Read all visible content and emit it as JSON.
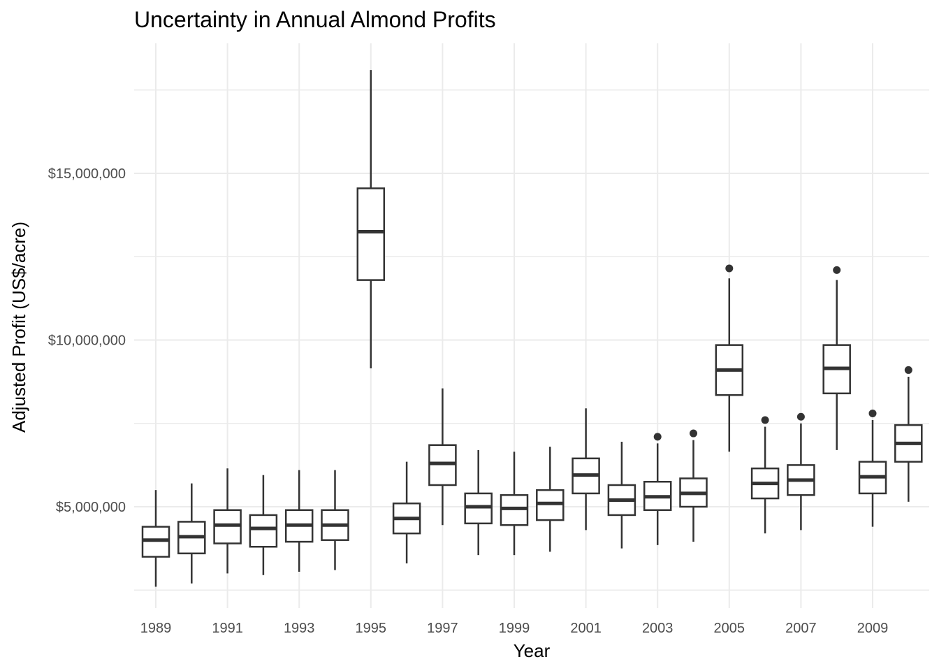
{
  "chart_data": {
    "type": "boxplot",
    "title": "Uncertainty in Annual Almond Profits",
    "xlabel": "Year",
    "ylabel": "Adjusted Profit (US$/acre)",
    "ylim": [
      2350000,
      18100000
    ],
    "y_ticks": [
      5000000,
      10000000,
      15000000
    ],
    "y_tick_labels": [
      "$5,000,000",
      "$10,000,000",
      "$15,000,000"
    ],
    "x_tick_labels": [
      "1989",
      "1991",
      "1993",
      "1995",
      "1997",
      "1999",
      "2001",
      "2003",
      "2005",
      "2007",
      "2009"
    ],
    "grid": true,
    "categories": [
      "1989",
      "1990",
      "1991",
      "1992",
      "1993",
      "1994",
      "1995",
      "1996",
      "1997",
      "1998",
      "1999",
      "2000",
      "2001",
      "2002",
      "2003",
      "2004",
      "2005",
      "2006",
      "2007",
      "2008",
      "2009",
      "2010"
    ],
    "boxes": [
      {
        "year": "1989",
        "low": 2600000,
        "q1": 3500000,
        "median": 4000000,
        "q3": 4400000,
        "high": 5500000,
        "outliers": []
      },
      {
        "year": "1990",
        "low": 2700000,
        "q1": 3600000,
        "median": 4100000,
        "q3": 4550000,
        "high": 5700000,
        "outliers": []
      },
      {
        "year": "1991",
        "low": 3000000,
        "q1": 3900000,
        "median": 4450000,
        "q3": 4900000,
        "high": 6150000,
        "outliers": []
      },
      {
        "year": "1992",
        "low": 2950000,
        "q1": 3800000,
        "median": 4350000,
        "q3": 4750000,
        "high": 5950000,
        "outliers": []
      },
      {
        "year": "1993",
        "low": 3050000,
        "q1": 3950000,
        "median": 4450000,
        "q3": 4900000,
        "high": 6100000,
        "outliers": []
      },
      {
        "year": "1994",
        "low": 3100000,
        "q1": 4000000,
        "median": 4450000,
        "q3": 4900000,
        "high": 6100000,
        "outliers": []
      },
      {
        "year": "1995",
        "low": 9150000,
        "q1": 11800000,
        "median": 13250000,
        "q3": 14550000,
        "high": 18100000,
        "outliers": []
      },
      {
        "year": "1996",
        "low": 3300000,
        "q1": 4200000,
        "median": 4650000,
        "q3": 5100000,
        "high": 6350000,
        "outliers": []
      },
      {
        "year": "1997",
        "low": 4450000,
        "q1": 5650000,
        "median": 6300000,
        "q3": 6850000,
        "high": 8550000,
        "outliers": []
      },
      {
        "year": "1998",
        "low": 3550000,
        "q1": 4500000,
        "median": 5000000,
        "q3": 5400000,
        "high": 6700000,
        "outliers": []
      },
      {
        "year": "1999",
        "low": 3550000,
        "q1": 4450000,
        "median": 4950000,
        "q3": 5350000,
        "high": 6650000,
        "outliers": []
      },
      {
        "year": "2000",
        "low": 3650000,
        "q1": 4600000,
        "median": 5100000,
        "q3": 5500000,
        "high": 6800000,
        "outliers": []
      },
      {
        "year": "2001",
        "low": 4300000,
        "q1": 5400000,
        "median": 5950000,
        "q3": 6450000,
        "high": 7950000,
        "outliers": []
      },
      {
        "year": "2002",
        "low": 3750000,
        "q1": 4750000,
        "median": 5200000,
        "q3": 5650000,
        "high": 6950000,
        "outliers": []
      },
      {
        "year": "2003",
        "low": 3850000,
        "q1": 4900000,
        "median": 5300000,
        "q3": 5750000,
        "high": 6900000,
        "outliers": [
          7100000
        ]
      },
      {
        "year": "2004",
        "low": 3950000,
        "q1": 5000000,
        "median": 5400000,
        "q3": 5850000,
        "high": 7000000,
        "outliers": [
          7200000
        ]
      },
      {
        "year": "2005",
        "low": 6650000,
        "q1": 8350000,
        "median": 9100000,
        "q3": 9850000,
        "high": 11850000,
        "outliers": [
          12150000
        ]
      },
      {
        "year": "2006",
        "low": 4200000,
        "q1": 5250000,
        "median": 5700000,
        "q3": 6150000,
        "high": 7400000,
        "outliers": [
          7600000
        ]
      },
      {
        "year": "2007",
        "low": 4300000,
        "q1": 5350000,
        "median": 5800000,
        "q3": 6250000,
        "high": 7500000,
        "outliers": [
          7700000
        ]
      },
      {
        "year": "2008",
        "low": 6700000,
        "q1": 8400000,
        "median": 9150000,
        "q3": 9850000,
        "high": 11800000,
        "outliers": [
          12100000
        ]
      },
      {
        "year": "2009",
        "low": 4400000,
        "q1": 5400000,
        "median": 5900000,
        "q3": 6350000,
        "high": 7600000,
        "outliers": [
          7800000
        ]
      },
      {
        "year": "2010",
        "low": 5150000,
        "q1": 6350000,
        "median": 6900000,
        "q3": 7450000,
        "high": 8900000,
        "outliers": [
          9100000
        ]
      }
    ]
  }
}
